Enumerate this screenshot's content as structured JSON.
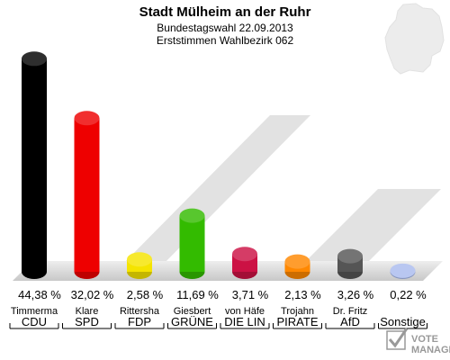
{
  "chart_data": {
    "type": "bar",
    "title": "Stadt Mülheim an der Ruhr",
    "subtitle_lines": [
      "Bundestagswahl 22.09.2013",
      "Erststimmen Wahlbezirk 062"
    ],
    "categories": [
      "CDU",
      "SPD",
      "FDP",
      "GRÜNE",
      "DIE LIN",
      "PIRATE",
      "AfD",
      "Sonstige"
    ],
    "candidates": [
      "Timmerma",
      "Klare",
      "Rittersha",
      "Giesbert",
      "von Häfe",
      "Trojahn",
      "Dr. Fritz",
      ""
    ],
    "values": [
      44.38,
      32.02,
      2.58,
      11.69,
      3.71,
      2.13,
      3.26,
      0.22
    ],
    "value_labels": [
      "44,38 %",
      "32,02 %",
      "2,58 %",
      "11,69 %",
      "3,71 %",
      "2,13 %",
      "3,26 %",
      "0,22 %"
    ],
    "colors": [
      "#000000",
      "#ee0000",
      "#f5e400",
      "#33bb00",
      "#cc1144",
      "#ff8800",
      "#555555",
      "#aabbee"
    ],
    "ylim": [
      0,
      45
    ],
    "xlabel": "",
    "ylabel": "",
    "grid": false,
    "legend": "none"
  },
  "logo": {
    "line1": "VOTE",
    "line2": "MANAGER"
  }
}
